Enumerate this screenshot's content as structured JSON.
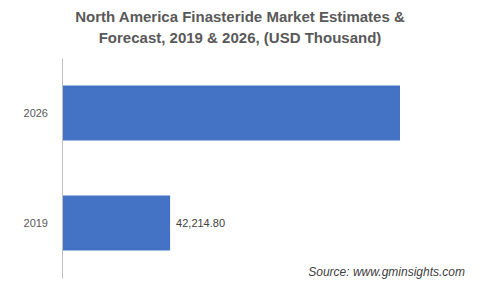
{
  "chart_data": {
    "type": "bar",
    "orientation": "horizontal",
    "title": [
      "North America Finasteride Market Estimates &",
      "Forecast, 2019 & 2026,  (USD Thousand)"
    ],
    "categories": [
      "2026",
      "2019"
    ],
    "values": [
      132000,
      42214.8
    ],
    "value_labels": [
      null,
      "42,214.80"
    ],
    "data_labels": true,
    "color": "#4472c4",
    "grid": false,
    "tick_labels": "y",
    "source": "Source: www.gminsights.com"
  }
}
